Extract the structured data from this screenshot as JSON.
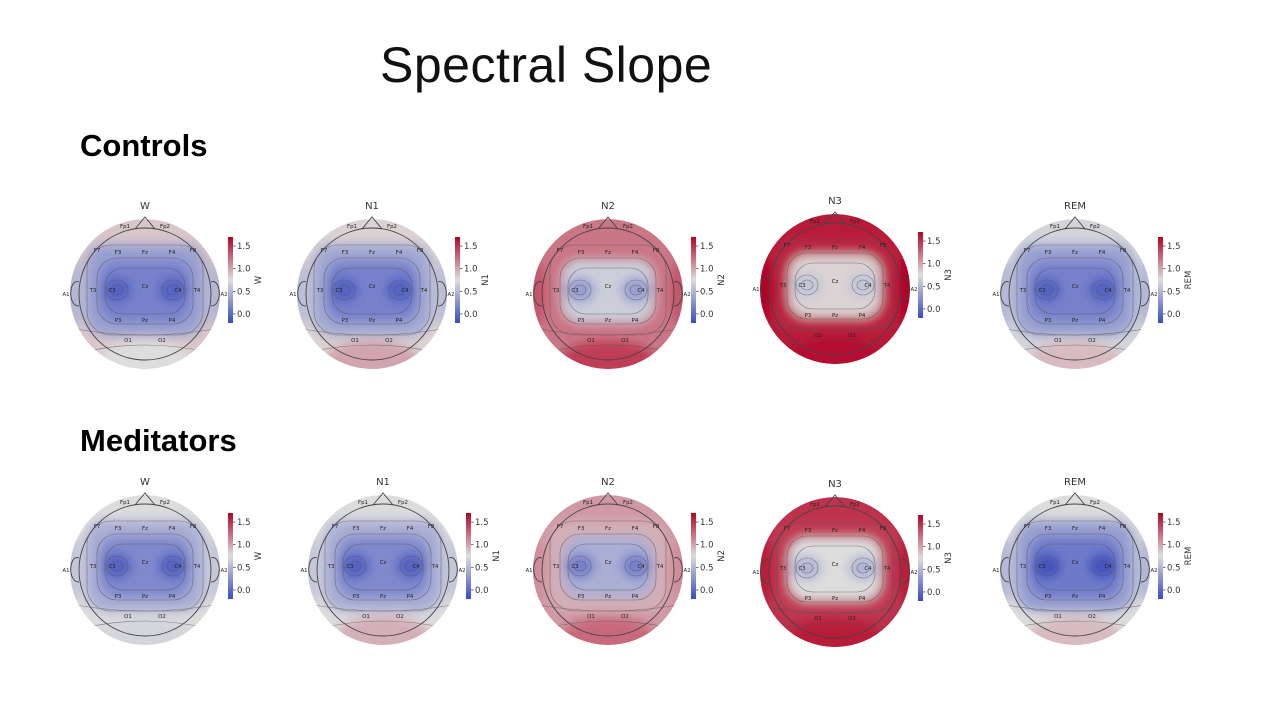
{
  "title": "Spectral Slope",
  "groups": {
    "controls": "Controls",
    "meditators": "Meditators"
  },
  "colormap": {
    "name": "coolwarm",
    "low": "#3b4cc0",
    "mid": "#dddddd",
    "high": "#b40426"
  },
  "chart_data": [
    {
      "type": "heatmap",
      "group": "Controls",
      "stage": "W",
      "title": "W",
      "colorbar_label": "W",
      "vmin": -0.2,
      "vmax": 1.7,
      "ticks": [
        "0.0",
        "0.5",
        "1.0",
        "1.5"
      ],
      "values": {
        "center": -0.05,
        "inner": 0.15,
        "temporal": 0.35,
        "fronto": 0.85,
        "occipital": 0.75
      }
    },
    {
      "type": "heatmap",
      "group": "Controls",
      "stage": "N1",
      "title": "N1",
      "colorbar_label": "N1",
      "vmin": -0.2,
      "vmax": 1.7,
      "ticks": [
        "0.0",
        "0.5",
        "1.0",
        "1.5"
      ],
      "values": {
        "center": -0.05,
        "inner": 0.15,
        "temporal": 0.4,
        "fronto": 0.8,
        "occipital": 1.0
      }
    },
    {
      "type": "heatmap",
      "group": "Controls",
      "stage": "N2",
      "title": "N2",
      "colorbar_label": "N2",
      "vmin": -0.2,
      "vmax": 1.7,
      "ticks": [
        "0.0",
        "0.5",
        "1.0",
        "1.5"
      ],
      "values": {
        "center": 0.35,
        "inner": 0.65,
        "temporal": 1.2,
        "fronto": 1.2,
        "occipital": 1.45
      }
    },
    {
      "type": "heatmap",
      "group": "Controls",
      "stage": "N3",
      "title": "N3",
      "colorbar_label": "N3",
      "vmin": -0.2,
      "vmax": 1.7,
      "ticks": [
        "0.0",
        "0.5",
        "1.0",
        "1.5"
      ],
      "values": {
        "center": 0.6,
        "inner": 0.8,
        "temporal": 1.55,
        "fronto": 1.6,
        "occipital": 1.65
      }
    },
    {
      "type": "heatmap",
      "group": "Controls",
      "stage": "REM",
      "title": "REM",
      "colorbar_label": "REM",
      "vmin": -0.2,
      "vmax": 1.7,
      "ticks": [
        "0.0",
        "0.5",
        "1.0",
        "1.5"
      ],
      "values": {
        "center": -0.05,
        "inner": 0.15,
        "temporal": 0.35,
        "fronto": 0.7,
        "occipital": 0.9
      }
    },
    {
      "type": "heatmap",
      "group": "Meditators",
      "stage": "W",
      "title": "W",
      "colorbar_label": "W",
      "vmin": -0.2,
      "vmax": 1.7,
      "ticks": [
        "0.0",
        "0.5",
        "1.0",
        "1.5"
      ],
      "values": {
        "center": -0.05,
        "inner": 0.2,
        "temporal": 0.45,
        "fronto": 0.75,
        "occipital": 0.7
      }
    },
    {
      "type": "heatmap",
      "group": "Meditators",
      "stage": "N1",
      "title": "N1",
      "colorbar_label": "N1",
      "vmin": -0.2,
      "vmax": 1.7,
      "ticks": [
        "0.0",
        "0.5",
        "1.0",
        "1.5"
      ],
      "values": {
        "center": -0.05,
        "inner": 0.2,
        "temporal": 0.45,
        "fronto": 0.75,
        "occipital": 0.95
      }
    },
    {
      "type": "heatmap",
      "group": "Meditators",
      "stage": "N2",
      "title": "N2",
      "colorbar_label": "N2",
      "vmin": -0.2,
      "vmax": 1.7,
      "ticks": [
        "0.0",
        "0.5",
        "1.0",
        "1.5"
      ],
      "values": {
        "center": 0.15,
        "inner": 0.45,
        "temporal": 0.95,
        "fronto": 1.05,
        "occipital": 1.25
      }
    },
    {
      "type": "heatmap",
      "group": "Meditators",
      "stage": "N3",
      "title": "N3",
      "colorbar_label": "N3",
      "vmin": -0.2,
      "vmax": 1.7,
      "ticks": [
        "0.0",
        "0.5",
        "1.0",
        "1.5"
      ],
      "values": {
        "center": 0.5,
        "inner": 0.75,
        "temporal": 1.45,
        "fronto": 1.5,
        "occipital": 1.6
      }
    },
    {
      "type": "heatmap",
      "group": "Meditators",
      "stage": "REM",
      "title": "REM",
      "colorbar_label": "REM",
      "vmin": -0.2,
      "vmax": 1.7,
      "ticks": [
        "0.0",
        "0.5",
        "1.0",
        "1.5"
      ],
      "values": {
        "center": -0.15,
        "inner": 0.1,
        "temporal": 0.35,
        "fronto": 0.75,
        "occipital": 0.9
      }
    }
  ],
  "electrodes": [
    "Fp1",
    "Fp2",
    "F7",
    "F3",
    "Fz",
    "F4",
    "F8",
    "A1",
    "T3",
    "C3",
    "Cz",
    "C4",
    "T4",
    "A2",
    "T5",
    "P3",
    "Pz",
    "P4",
    "T6",
    "O1",
    "O2"
  ]
}
